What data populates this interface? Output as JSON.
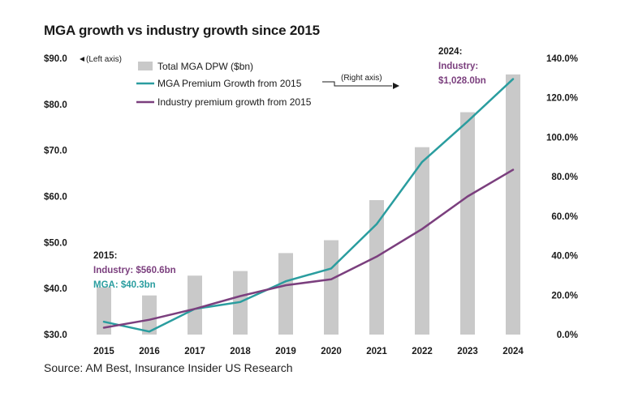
{
  "chart_data": {
    "type": "bar",
    "title": "MGA growth vs industry growth since 2015",
    "categories": [
      "2015",
      "2016",
      "2017",
      "2018",
      "2019",
      "2020",
      "2021",
      "2022",
      "2023",
      "2024"
    ],
    "bar_series": {
      "name": "Total MGA DPW ($bn)",
      "axis": "left",
      "values": [
        40.3,
        38.5,
        42.8,
        43.8,
        47.7,
        50.5,
        59.2,
        70.7,
        78.3,
        86.5
      ]
    },
    "line_series": [
      {
        "name": "MGA Premium Growth from 2015",
        "axis": "right",
        "color": "#2a9d9f",
        "values": [
          6.5,
          1.5,
          13.0,
          16.5,
          27.0,
          33.5,
          56.0,
          87.5,
          108.0,
          129.5
        ]
      },
      {
        "name": "Industry premium growth from 2015",
        "axis": "right",
        "color": "#7b3f7e",
        "values": [
          3.5,
          7.5,
          13.0,
          19.5,
          25.0,
          28.0,
          39.5,
          53.5,
          70.0,
          83.5
        ]
      }
    ],
    "left_axis": {
      "ylim": [
        30,
        90
      ],
      "ticks": [
        30,
        40,
        50,
        60,
        70,
        80,
        90
      ],
      "tick_labels": [
        "$30.0",
        "$40.0",
        "$50.0",
        "$60.0",
        "$70.0",
        "$80.0",
        "$90.0"
      ],
      "note": "(Left axis)"
    },
    "right_axis": {
      "ylim": [
        0,
        140
      ],
      "ticks": [
        0,
        20,
        40,
        60,
        80,
        100,
        120,
        140
      ],
      "tick_labels": [
        "0.0%",
        "20.0%",
        "40.0%",
        "60.0%",
        "80.0%",
        "100.0%",
        "120.0%",
        "140.0%"
      ],
      "note": "(Right axis)"
    },
    "annotations": {
      "start": {
        "year": "2015:",
        "industry": "Industry: $560.6bn",
        "mga": "MGA: $40.3bn"
      },
      "end": {
        "year": "2024:",
        "industry_label": "Industry:",
        "industry_value": "$1,028.0bn"
      }
    },
    "colors": {
      "bar": "#c9c9c9",
      "industry": "#7b3f7e",
      "mga": "#2a9d9f"
    }
  },
  "source": "Source: AM Best, Insurance Insider US Research"
}
